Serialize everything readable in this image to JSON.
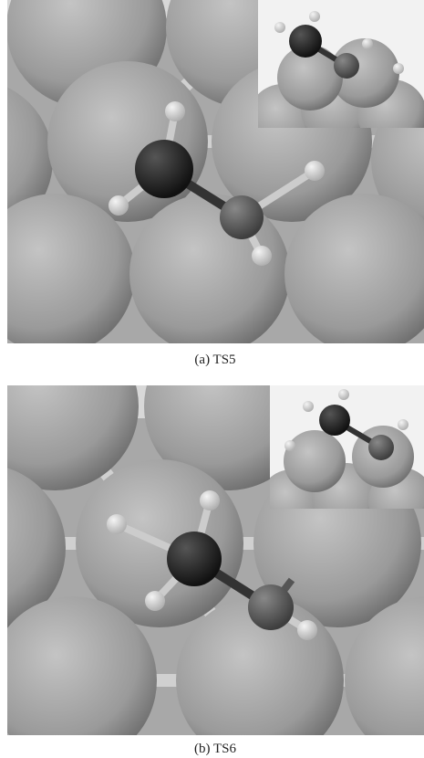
{
  "figures": [
    {
      "caption": "(a) TS5"
    },
    {
      "caption": "(b) TS6"
    }
  ]
}
